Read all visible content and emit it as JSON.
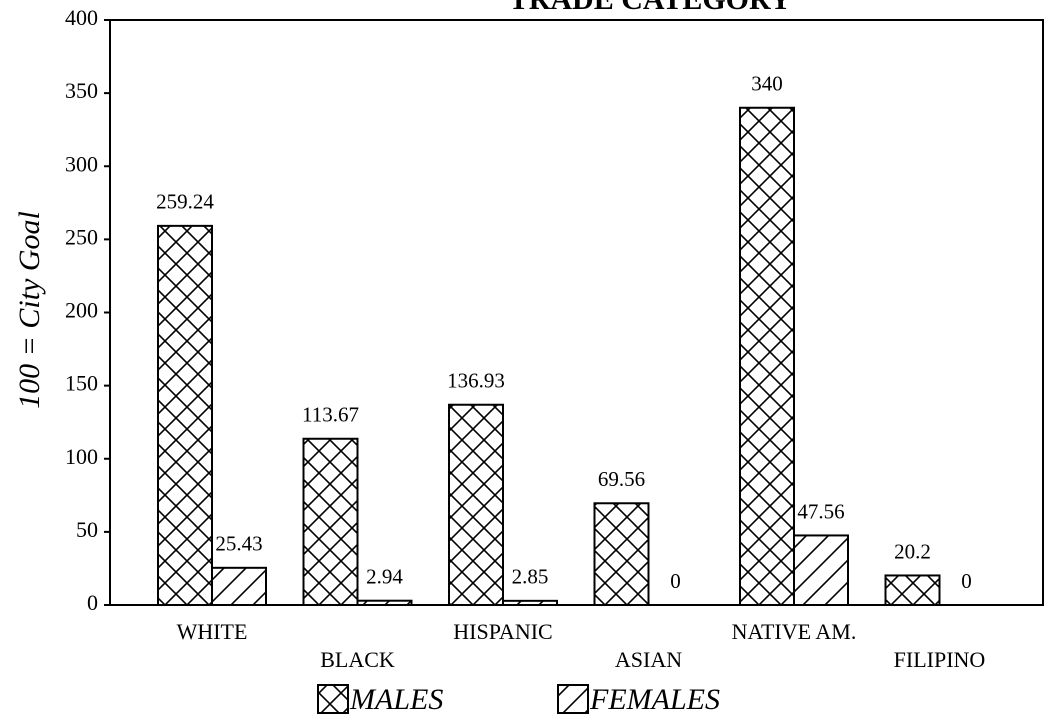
{
  "chart_data": {
    "type": "bar",
    "title": "TRADE CATEGORY",
    "y_label": "100 = City Goal",
    "categories": [
      "WHITE",
      "BLACK",
      "HISPANIC",
      "ASIAN",
      "NATIVE AM.",
      "FILIPINO"
    ],
    "series": [
      {
        "name": "MALES",
        "color": "#000000",
        "pattern": "crosshatch",
        "values": [
          259.24,
          113.67,
          136.93,
          69.56,
          340,
          20.2
        ]
      },
      {
        "name": "FEMALES",
        "color": "#000000",
        "pattern": "diagonal",
        "values": [
          25.43,
          2.94,
          2.85,
          0,
          47.56,
          0
        ]
      }
    ],
    "ylim": [
      0,
      400
    ],
    "yticks": [
      0,
      50,
      100,
      150,
      200,
      250,
      300,
      350,
      400
    ],
    "grid": false
  }
}
